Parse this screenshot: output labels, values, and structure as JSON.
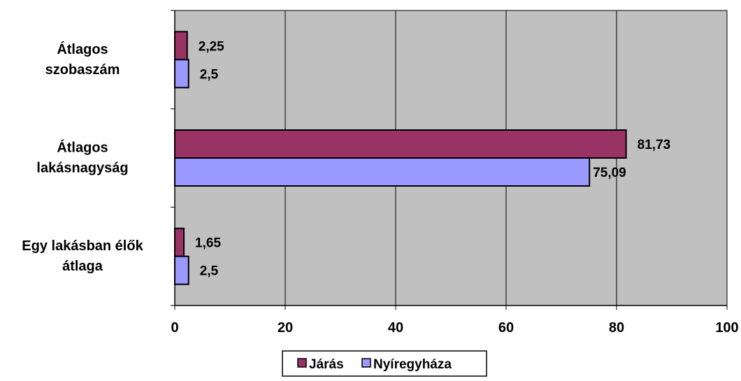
{
  "chart_data": {
    "type": "bar",
    "orientation": "horizontal",
    "categories": [
      [
        "Átlagos",
        "szobaszám"
      ],
      [
        "Átlagos",
        "lakásnagyság"
      ],
      [
        "Egy lakásban élők",
        "átlaga"
      ]
    ],
    "series": [
      {
        "name": "Járás",
        "color": "#993366",
        "values": [
          2.25,
          81.73,
          1.65
        ],
        "labels": [
          "2,25",
          "81,73",
          "1,65"
        ]
      },
      {
        "name": "Nyíregyháza",
        "color": "#9999ff",
        "values": [
          2.5,
          75.09,
          2.5
        ],
        "labels": [
          "2,5",
          "75,09",
          "2,5"
        ]
      }
    ],
    "xlim": [
      0,
      100
    ],
    "xticks": [
      0,
      20,
      40,
      60,
      80,
      100
    ],
    "grid": true,
    "plot_background": "#c0c0c0",
    "legend_position": "bottom"
  }
}
